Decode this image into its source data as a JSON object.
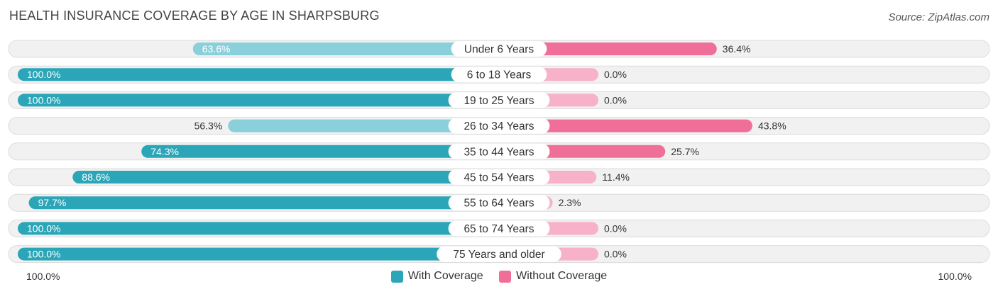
{
  "header": {
    "title": "HEALTH INSURANCE COVERAGE BY AGE IN SHARPSBURG",
    "source": "Source: ZipAtlas.com"
  },
  "colors": {
    "with_strong": "#2aa6b8",
    "with_light": "#8ad0db",
    "without_strong": "#f06f98",
    "without_light": "#f7b1c8"
  },
  "chart_data": {
    "type": "bar",
    "orientation": "horizontal-diverging",
    "title": "HEALTH INSURANCE COVERAGE BY AGE IN SHARPSBURG",
    "categories": [
      "Under 6 Years",
      "6 to 18 Years",
      "19 to 25 Years",
      "26 to 34 Years",
      "35 to 44 Years",
      "45 to 54 Years",
      "55 to 64 Years",
      "65 to 74 Years",
      "75 Years and older"
    ],
    "series": [
      {
        "name": "With Coverage",
        "values": [
          63.6,
          100.0,
          100.0,
          56.3,
          74.3,
          88.6,
          97.7,
          100.0,
          100.0
        ],
        "labels": [
          "63.6%",
          "100.0%",
          "100.0%",
          "56.3%",
          "74.3%",
          "88.6%",
          "97.7%",
          "100.0%",
          "100.0%"
        ]
      },
      {
        "name": "Without Coverage",
        "values": [
          36.4,
          0.0,
          0.0,
          43.8,
          25.7,
          11.4,
          2.3,
          0.0,
          0.0
        ],
        "labels": [
          "36.4%",
          "0.0%",
          "0.0%",
          "43.8%",
          "25.7%",
          "11.4%",
          "2.3%",
          "0.0%",
          "0.0%"
        ]
      }
    ],
    "xlim": [
      0,
      100
    ],
    "axis_labels": {
      "left": "100.0%",
      "right": "100.0%"
    },
    "legend": [
      "With Coverage",
      "Without Coverage"
    ],
    "legend_position": "bottom-center"
  }
}
